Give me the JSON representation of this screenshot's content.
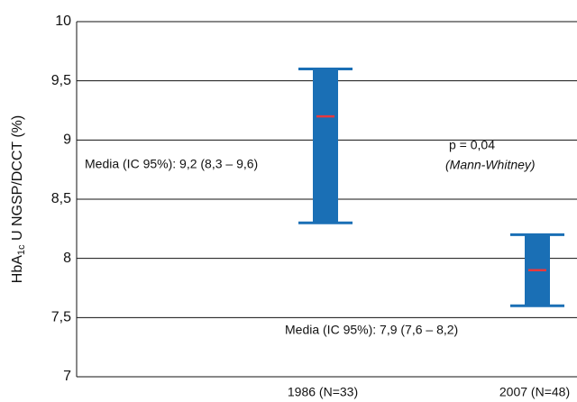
{
  "chart_data": {
    "type": "range",
    "ylabel": [
      "HbA",
      "1c",
      " U NGSP/DCCT (%)"
    ],
    "categories": [
      "1986 (N=33)",
      "2007 (N=48)"
    ],
    "values": [
      9.2,
      7.9
    ],
    "low": [
      8.3,
      7.6
    ],
    "high": [
      9.6,
      8.2
    ],
    "color": "#1a6fb5",
    "median_color": "#e8383d",
    "ylim": [
      7,
      10
    ],
    "yticks": [
      7,
      {
        "value": 7.5,
        "label": "7,5"
      },
      8,
      {
        "value": 8.5,
        "label": "8,5"
      },
      9,
      {
        "value": 9.5,
        "label": "9,5"
      },
      10
    ],
    "grid": true,
    "annotations": [
      "Media (IC 95%): 9,2 (8,3 – 9,6)",
      "p = 0,04",
      "(Mann-Whitney)",
      "Media (IC 95%): 7,9 (7,6 – 8,2)"
    ]
  }
}
